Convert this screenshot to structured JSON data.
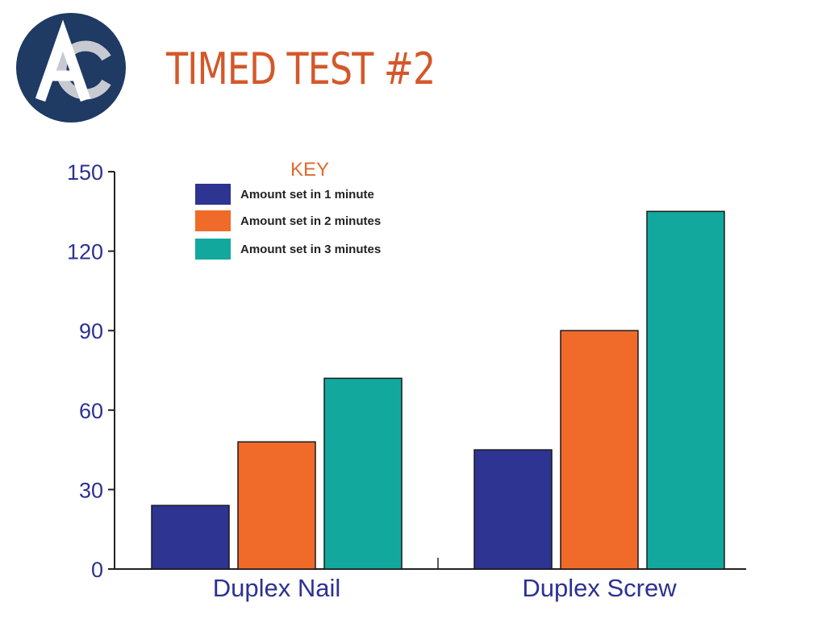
{
  "header": {
    "title": "TIMED TEST #2",
    "title_color": "#d4582a",
    "logo_text": "AC",
    "logo_colors": {
      "circle": "#1f3a63",
      "letter_a": "#ffffff",
      "letter_c": "#c7cbd1"
    }
  },
  "chart_data": {
    "type": "bar",
    "title": "",
    "xlabel": "",
    "ylabel": "",
    "categories": [
      "Duplex Nail",
      "Duplex Screw"
    ],
    "series": [
      {
        "name": "Amount set in 1 minute",
        "values": [
          24,
          45
        ],
        "color": "#2e3492"
      },
      {
        "name": "Amount set in 2 minutes",
        "values": [
          48,
          90
        ],
        "color": "#f06a2a"
      },
      {
        "name": "Amount set in 3 minutes",
        "values": [
          72,
          135
        ],
        "color": "#12a89d"
      }
    ],
    "ylim": [
      0,
      150
    ],
    "yticks": [
      "0",
      "30",
      "60",
      "90",
      "120",
      "150"
    ],
    "grid": false,
    "legend": {
      "title": "KEY",
      "placement": "top-left",
      "title_color": "#e06a2e"
    },
    "axis_label_color": "#2d3192"
  }
}
